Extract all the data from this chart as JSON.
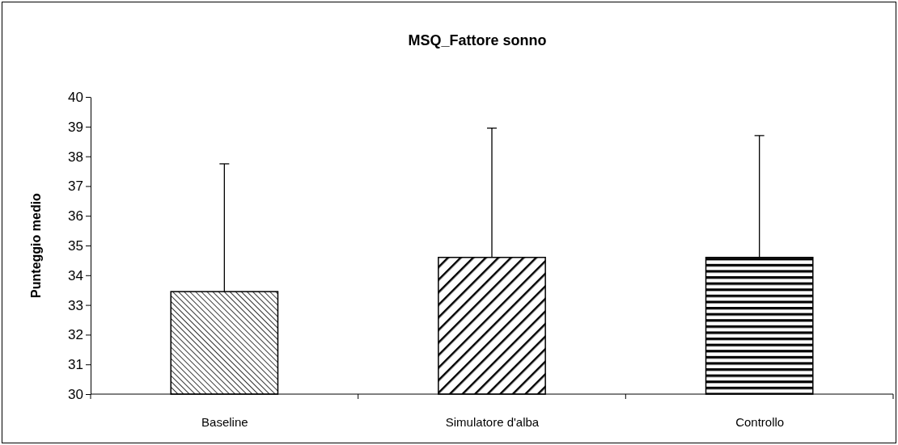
{
  "chart_data": {
    "type": "bar",
    "title": "MSQ_Fattore sonno",
    "ylabel": "Punteggio medio",
    "categories": [
      "Baseline",
      "Simulatore d'alba",
      "Controllo"
    ],
    "values": [
      33.45,
      34.6,
      34.6
    ],
    "errors": [
      [
        33.45,
        37.75
      ],
      [
        34.6,
        38.95
      ],
      [
        34.6,
        38.7
      ]
    ],
    "color": "#000000",
    "ylim": [
      30,
      40
    ],
    "yticks": [
      30,
      31,
      32,
      33,
      34,
      35,
      36,
      37,
      38,
      39,
      40
    ]
  }
}
